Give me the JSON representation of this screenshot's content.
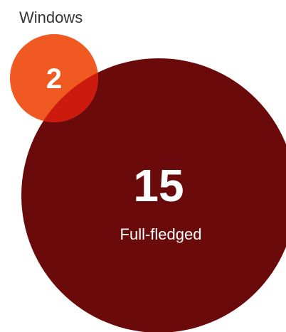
{
  "chart_data": {
    "type": "venn",
    "title": "Windows",
    "sets": [
      {
        "label": "Full-fledged",
        "value": "15",
        "color": "#6b0a0a"
      },
      {
        "label": "",
        "value": "2",
        "color": "#f05a22"
      }
    ],
    "overlap_color": "#cc1a0e"
  }
}
